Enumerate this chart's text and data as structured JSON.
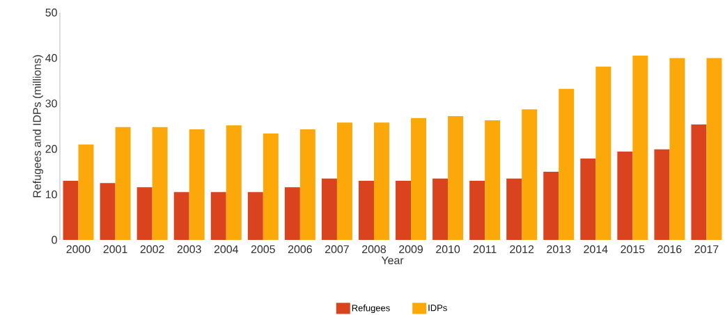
{
  "chart_data": {
    "type": "bar",
    "xlabel": "Year",
    "ylabel": "Refugees and IDPs (millions)",
    "categories": [
      "2000",
      "2001",
      "2002",
      "2003",
      "2004",
      "2005",
      "2006",
      "2007",
      "2008",
      "2009",
      "2010",
      "2011",
      "2012",
      "2013",
      "2014",
      "2015",
      "2016",
      "2017"
    ],
    "series": [
      {
        "name": "Refugees",
        "color": "#d9441e",
        "values": [
          13.0,
          12.5,
          11.6,
          10.5,
          10.5,
          10.5,
          11.6,
          13.5,
          13.0,
          13.0,
          13.5,
          13.0,
          13.5,
          15.0,
          17.9,
          19.4,
          19.9,
          25.4
        ]
      },
      {
        "name": "IDPs",
        "color": "#fca80a",
        "values": [
          21.0,
          24.8,
          24.8,
          24.3,
          25.2,
          23.4,
          24.3,
          25.8,
          25.8,
          26.8,
          27.2,
          26.3,
          28.7,
          33.2,
          38.1,
          40.5,
          40.0,
          40.0
        ]
      }
    ],
    "ylim": [
      0,
      50
    ],
    "yticks": [
      0,
      10,
      20,
      30,
      40,
      50
    ],
    "grid": false,
    "legend": "bottom"
  }
}
